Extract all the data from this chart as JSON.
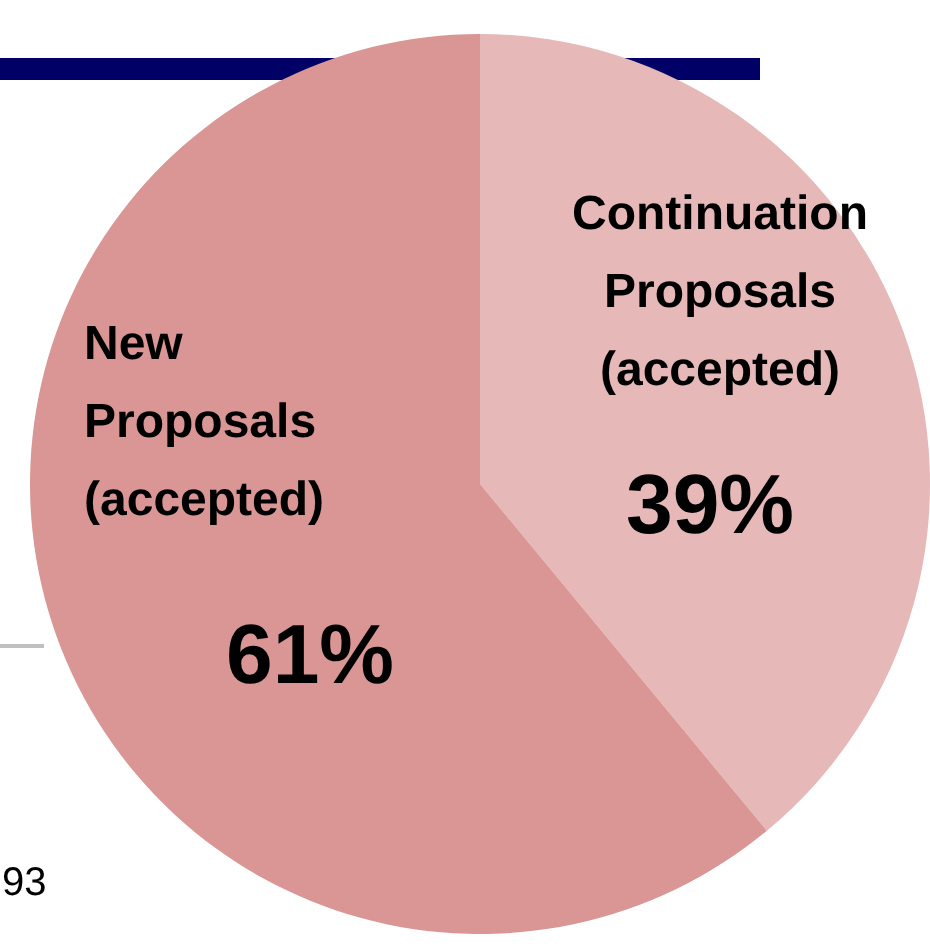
{
  "chart_data": {
    "type": "pie",
    "categories": [
      "Continuation Proposals (accepted)",
      "New Proposals (accepted)"
    ],
    "values": [
      39,
      61
    ],
    "colors": [
      "#e6b8b7",
      "#d99694"
    ],
    "value_labels": [
      "39%",
      "61%"
    ],
    "legend": false,
    "annotations": [
      "93"
    ]
  }
}
